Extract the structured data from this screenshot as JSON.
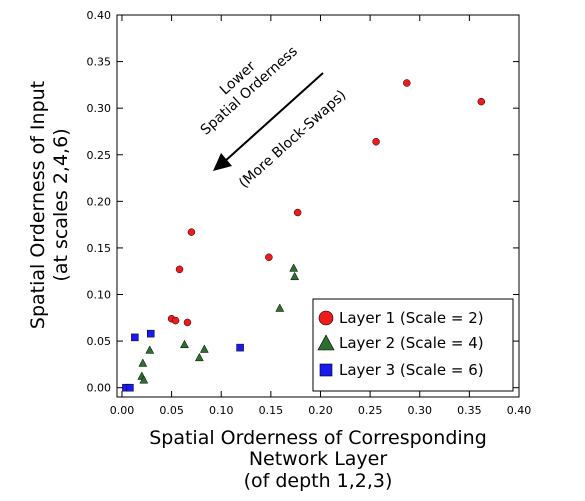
{
  "chart_data": {
    "type": "scatter",
    "xlabel_lines": [
      "Spatial Orderness of Corresponding",
      "Network Layer",
      "(of depth 1,2,3)"
    ],
    "ylabel_lines": [
      "Spatial Orderness of Input",
      "(at scales 2,4,6)"
    ],
    "xlim": [
      -0.005,
      0.4
    ],
    "ylim": [
      -0.01,
      0.4
    ],
    "x_ticks": [
      0.0,
      0.05,
      0.1,
      0.15,
      0.2,
      0.25,
      0.3,
      0.35,
      0.4
    ],
    "x_tick_labels": [
      "0.00",
      "0.05",
      "0.10",
      "0.15",
      "0.20",
      "0.25",
      "0.30",
      "0.35",
      "0.40"
    ],
    "y_ticks": [
      0.0,
      0.05,
      0.1,
      0.15,
      0.2,
      0.25,
      0.3,
      0.35,
      0.4
    ],
    "y_tick_labels": [
      "0.00",
      "0.05",
      "0.10",
      "0.15",
      "0.20",
      "0.25",
      "0.30",
      "0.35",
      "0.40"
    ],
    "grid": false,
    "legend_position": "lower-right",
    "annotation": {
      "lines": [
        "Lower",
        "Spatial Orderness",
        "(More Block-Swaps)"
      ]
    },
    "series": [
      {
        "name": "Layer 1 (Scale = 2)",
        "marker": "circle",
        "color": "#ee1c1c",
        "points": [
          [
            0.287,
            0.327
          ],
          [
            0.362,
            0.307
          ],
          [
            0.256,
            0.264
          ],
          [
            0.177,
            0.188
          ],
          [
            0.07,
            0.167
          ],
          [
            0.148,
            0.14
          ],
          [
            0.058,
            0.127
          ],
          [
            0.05,
            0.074
          ],
          [
            0.054,
            0.072
          ],
          [
            0.066,
            0.07
          ]
        ]
      },
      {
        "name": "Layer 2 (Scale = 4)",
        "marker": "triangle",
        "color": "#2e6e2e",
        "points": [
          [
            0.173,
            0.128
          ],
          [
            0.174,
            0.119
          ],
          [
            0.159,
            0.085
          ],
          [
            0.063,
            0.046
          ],
          [
            0.083,
            0.041
          ],
          [
            0.028,
            0.04
          ],
          [
            0.078,
            0.032
          ],
          [
            0.021,
            0.026
          ],
          [
            0.02,
            0.012
          ],
          [
            0.022,
            0.008
          ]
        ]
      },
      {
        "name": "Layer 3 (Scale = 6)",
        "marker": "square",
        "color": "#1a1aee",
        "points": [
          [
            0.029,
            0.058
          ],
          [
            0.013,
            0.054
          ],
          [
            0.119,
            0.043
          ],
          [
            0.004,
            0.0
          ],
          [
            0.008,
            0.0
          ]
        ]
      }
    ]
  }
}
